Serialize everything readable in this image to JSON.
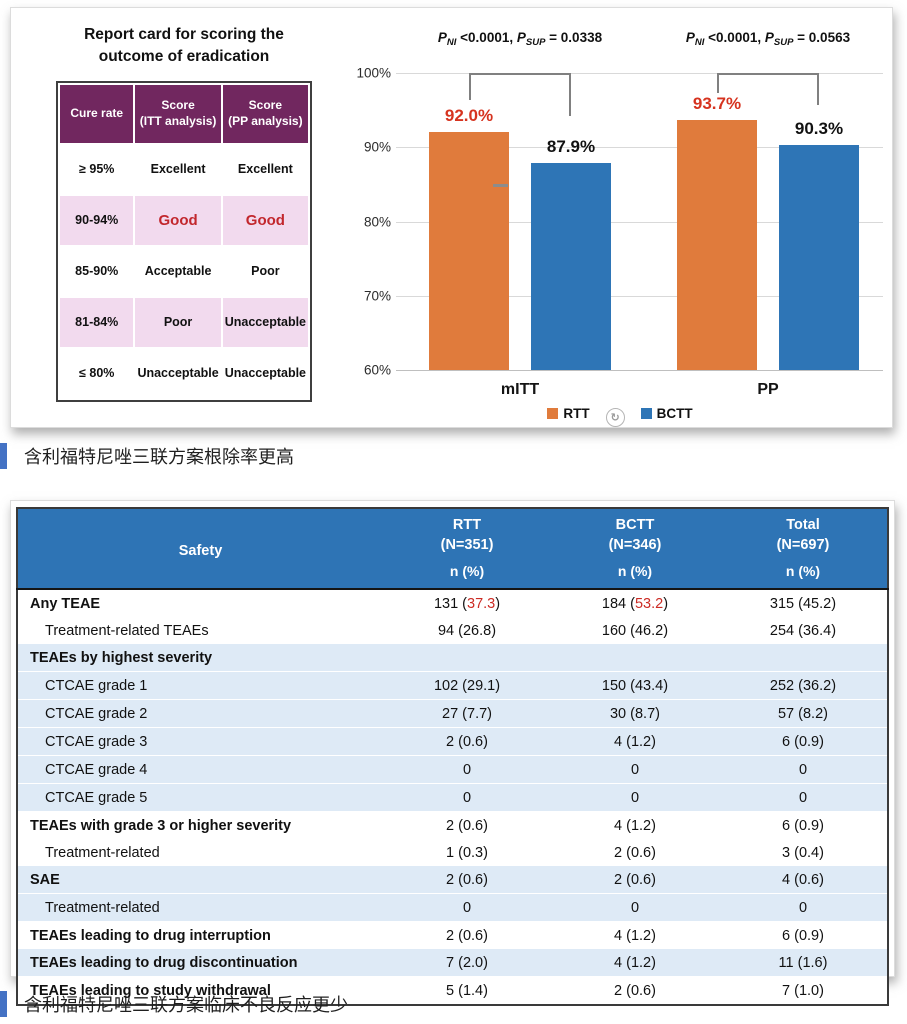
{
  "report_card": {
    "title": "Report card for scoring the\noutcome of eradication",
    "headers": [
      "Cure rate",
      "Score\n(ITT analysis)",
      "Score\n(PP analysis)"
    ],
    "rows": [
      {
        "rate": "≥ 95%",
        "itt": "Excellent",
        "pp": "Excellent",
        "pink": false,
        "red": false
      },
      {
        "rate": "90-94%",
        "itt": "Good",
        "pp": "Good",
        "pink": true,
        "red": true
      },
      {
        "rate": "85-90%",
        "itt": "Acceptable",
        "pp": "Poor",
        "pink": false,
        "red": false
      },
      {
        "rate": "81-84%",
        "itt": "Poor",
        "pp": "Unacceptable",
        "pink": true,
        "red": false
      },
      {
        "rate": "≤ 80%",
        "itt": "Unacceptable",
        "pp": "Unacceptable",
        "pink": false,
        "red": false
      }
    ]
  },
  "chart_data": {
    "type": "bar",
    "categories": [
      "mITT",
      "PP"
    ],
    "series": [
      {
        "name": "RTT",
        "color": "#E07B3C",
        "label_color": "#D6331F",
        "values": [
          92.0,
          93.7
        ]
      },
      {
        "name": "BCTT",
        "color": "#2E75B6",
        "label_color": "#111111",
        "values": [
          87.9,
          90.3
        ]
      }
    ],
    "ylim": [
      60,
      100
    ],
    "yticks": [
      100,
      90,
      80,
      70,
      60
    ],
    "ytick_labels": [
      "100%",
      "90%",
      "80%",
      "70%",
      "60%"
    ],
    "grid": true,
    "legend_position": "bottom",
    "annotations": [
      {
        "segments": [
          {
            "t": "P",
            "s": "i"
          },
          {
            "t": "NI",
            "s": "sub"
          },
          {
            "t": " <0.0001, ",
            "s": ""
          },
          {
            "t": "P",
            "s": "i"
          },
          {
            "t": "SUP",
            "s": "sub"
          },
          {
            "t": " = 0.0338",
            "s": ""
          }
        ]
      },
      {
        "segments": [
          {
            "t": "P",
            "s": "i"
          },
          {
            "t": "NI",
            "s": "sub"
          },
          {
            "t": " <0.0001, ",
            "s": ""
          },
          {
            "t": "P",
            "s": "i"
          },
          {
            "t": "SUP",
            "s": "sub"
          },
          {
            "t": " = 0.0563",
            "s": ""
          }
        ]
      }
    ]
  },
  "icons": {
    "rotate": "↻"
  },
  "headings": [
    "含利福特尼唑三联方案根除率更高",
    "含利福特尼唑三联方案临床不良反应更少"
  ],
  "safety_table": {
    "header": {
      "label": "Safety",
      "columns": [
        {
          "name": "RTT",
          "n": "(N=351)",
          "unit": "n (%)"
        },
        {
          "name": "BCTT",
          "n": "(N=346)",
          "unit": "n (%)"
        },
        {
          "name": "Total",
          "n": "(N=697)",
          "unit": "n (%)"
        }
      ]
    },
    "rows": [
      {
        "label": "Any TEAE",
        "bold": true,
        "indent": false,
        "band": false,
        "cells": [
          {
            "n": "131",
            "pct": "37.3",
            "red": true
          },
          {
            "n": "184",
            "pct": "53.2",
            "red": true
          },
          {
            "n": "315",
            "pct": "45.2"
          }
        ]
      },
      {
        "label": "Treatment-related TEAEs",
        "bold": false,
        "indent": true,
        "band": false,
        "cells": [
          {
            "n": "94",
            "pct": "26.8"
          },
          {
            "n": "160",
            "pct": "46.2"
          },
          {
            "n": "254",
            "pct": "36.4"
          }
        ]
      },
      {
        "label": "TEAEs by highest severity",
        "bold": true,
        "indent": false,
        "band": true,
        "cells": []
      },
      {
        "label": "CTCAE grade 1",
        "bold": false,
        "indent": true,
        "band": true,
        "cells": [
          {
            "n": "102",
            "pct": "29.1"
          },
          {
            "n": "150",
            "pct": "43.4"
          },
          {
            "n": "252",
            "pct": "36.2"
          }
        ]
      },
      {
        "label": "CTCAE grade 2",
        "bold": false,
        "indent": true,
        "band": true,
        "cells": [
          {
            "n": "27",
            "pct": "7.7"
          },
          {
            "n": "30",
            "pct": "8.7"
          },
          {
            "n": "57",
            "pct": "8.2"
          }
        ]
      },
      {
        "label": "CTCAE grade 3",
        "bold": false,
        "indent": true,
        "band": true,
        "cells": [
          {
            "n": "2",
            "pct": "0.6"
          },
          {
            "n": "4",
            "pct": "1.2"
          },
          {
            "n": "6",
            "pct": "0.9"
          }
        ]
      },
      {
        "label": "CTCAE grade 4",
        "bold": false,
        "indent": true,
        "band": true,
        "cells": [
          {
            "n": "0"
          },
          {
            "n": "0"
          },
          {
            "n": "0"
          }
        ]
      },
      {
        "label": "CTCAE grade 5",
        "bold": false,
        "indent": true,
        "band": true,
        "cells": [
          {
            "n": "0"
          },
          {
            "n": "0"
          },
          {
            "n": "0"
          }
        ]
      },
      {
        "label": "TEAEs with grade 3 or higher severity",
        "bold": true,
        "indent": false,
        "band": false,
        "cells": [
          {
            "n": "2",
            "pct": "0.6"
          },
          {
            "n": "4",
            "pct": "1.2"
          },
          {
            "n": "6",
            "pct": "0.9"
          }
        ]
      },
      {
        "label": "Treatment-related",
        "bold": false,
        "indent": true,
        "band": false,
        "cells": [
          {
            "n": "1",
            "pct": "0.3"
          },
          {
            "n": "2",
            "pct": "0.6"
          },
          {
            "n": "3",
            "pct": "0.4"
          }
        ]
      },
      {
        "label": "SAE",
        "bold": true,
        "indent": false,
        "band": true,
        "cells": [
          {
            "n": "2",
            "pct": "0.6"
          },
          {
            "n": "2",
            "pct": "0.6"
          },
          {
            "n": "4",
            "pct": "0.6"
          }
        ]
      },
      {
        "label": "Treatment-related",
        "bold": false,
        "indent": true,
        "band": true,
        "cells": [
          {
            "n": "0"
          },
          {
            "n": "0"
          },
          {
            "n": "0"
          }
        ]
      },
      {
        "label": "TEAEs leading to drug interruption",
        "bold": true,
        "indent": false,
        "band": false,
        "cells": [
          {
            "n": "2",
            "pct": "0.6"
          },
          {
            "n": "4",
            "pct": "1.2"
          },
          {
            "n": "6",
            "pct": "0.9"
          }
        ]
      },
      {
        "label": "TEAEs leading to drug discontinuation",
        "bold": true,
        "indent": false,
        "band": true,
        "cells": [
          {
            "n": "7",
            "pct": "2.0"
          },
          {
            "n": "4",
            "pct": "1.2"
          },
          {
            "n": "11",
            "pct": "1.6"
          }
        ]
      },
      {
        "label": "TEAEs leading to study withdrawal",
        "bold": true,
        "indent": false,
        "band": false,
        "cells": [
          {
            "n": "5",
            "pct": "1.4"
          },
          {
            "n": "2",
            "pct": "0.6"
          },
          {
            "n": "7",
            "pct": "1.0"
          }
        ]
      }
    ]
  },
  "colors": {
    "rtt_orange": "#E07B3C",
    "bctt_blue": "#2E75B6",
    "table_header_blue": "#2E74B5",
    "band_blue": "#DEEAF6",
    "purple": "#71275F",
    "pink": "#F2DAEE",
    "red": "#CC2B24",
    "accent_blue": "#4472C4"
  }
}
